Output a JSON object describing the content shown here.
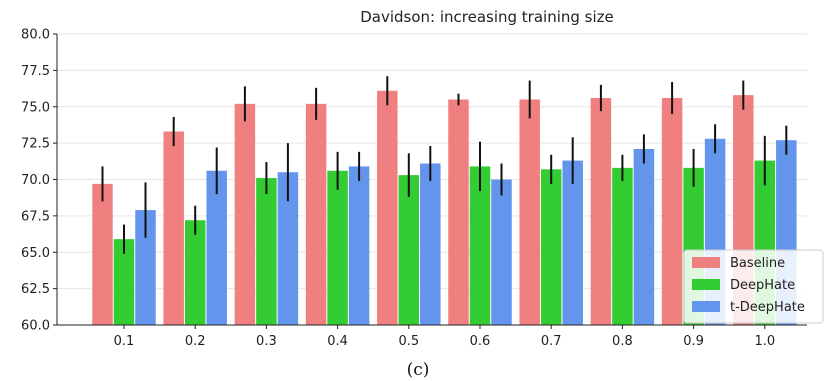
{
  "chart_data": {
    "type": "bar",
    "title": "Davidson: increasing training size",
    "xlabel": "",
    "ylabel": "",
    "categories": [
      "0.1",
      "0.2",
      "0.3",
      "0.4",
      "0.5",
      "0.6",
      "0.7",
      "0.8",
      "0.9",
      "1.0"
    ],
    "ylim": [
      60.0,
      80.0
    ],
    "yticks": [
      "60.0",
      "62.5",
      "65.0",
      "67.5",
      "70.0",
      "72.5",
      "75.0",
      "77.5",
      "80.0"
    ],
    "grid": "horizontal",
    "legend_position": "bottom-right",
    "series": [
      {
        "name": "Baseline",
        "color": "#f08080",
        "values": [
          69.7,
          73.3,
          75.2,
          75.2,
          76.1,
          75.5,
          75.5,
          75.6,
          75.6,
          75.8
        ],
        "errors": [
          1.2,
          1.0,
          1.2,
          1.1,
          1.0,
          0.4,
          1.3,
          0.9,
          1.1,
          1.0
        ]
      },
      {
        "name": "DeepHate",
        "color": "#33cc33",
        "values": [
          65.9,
          67.2,
          70.1,
          70.6,
          70.3,
          70.9,
          70.7,
          70.8,
          70.8,
          71.3
        ],
        "errors": [
          1.0,
          1.0,
          1.1,
          1.3,
          1.5,
          1.7,
          1.0,
          0.9,
          1.3,
          1.7
        ]
      },
      {
        "name": "t-DeepHate",
        "color": "#6495ed",
        "values": [
          67.9,
          70.6,
          70.5,
          70.9,
          71.1,
          70.0,
          71.3,
          72.1,
          72.8,
          72.7
        ],
        "errors": [
          1.9,
          1.6,
          2.0,
          1.0,
          1.2,
          1.1,
          1.6,
          1.0,
          1.0,
          1.0
        ]
      }
    ]
  },
  "caption": "(c)"
}
